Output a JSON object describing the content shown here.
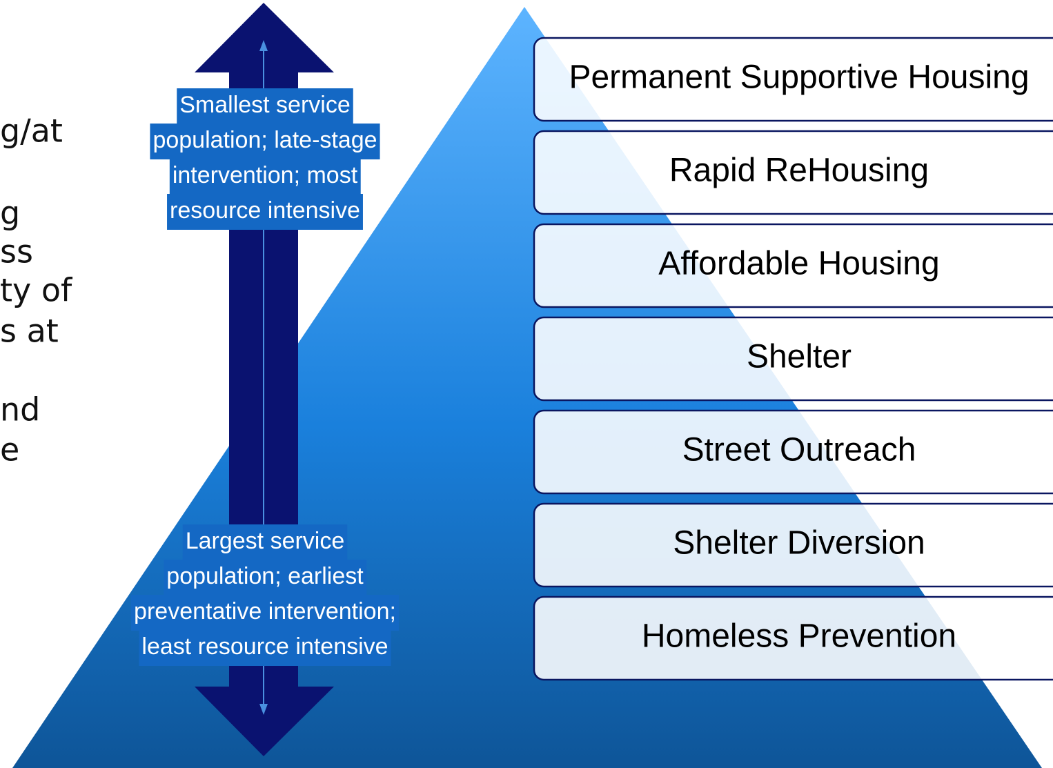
{
  "left_text": [
    "g/at",
    "g",
    "ss",
    "ty of",
    "s at",
    "nd",
    "e"
  ],
  "top_note": [
    "Smallest service",
    "population; late-stage",
    "intervention; most",
    "resource intensive"
  ],
  "bottom_note": [
    "Largest service",
    "population; earliest",
    "preventative intervention;",
    "least resource intensive"
  ],
  "levels": [
    "Permanent Supportive Housing",
    "Rapid ReHousing",
    "Affordable Housing",
    "Shelter",
    "Street Outreach",
    "Shelter Diversion",
    "Homeless Prevention"
  ]
}
